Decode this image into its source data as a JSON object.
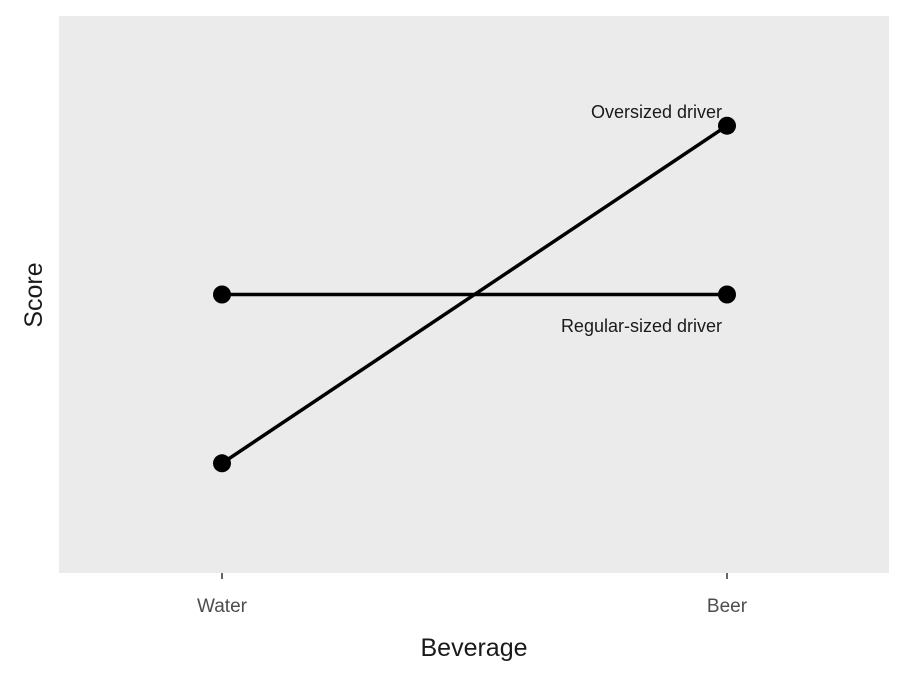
{
  "chart_data": {
    "type": "line",
    "title": "",
    "xlabel": "Beverage",
    "ylabel": "Score",
    "categories": [
      "Water",
      "Beer"
    ],
    "series": [
      {
        "name": "Oversized driver",
        "values": [
          1,
          3
        ]
      },
      {
        "name": "Regular-sized driver",
        "values": [
          2,
          2
        ]
      }
    ],
    "y_ticks_shown": false,
    "ylim": [
      0.35,
      3.65
    ],
    "grid": false,
    "legend": "none (direct labels)",
    "annotations": [
      {
        "text": "Oversized driver",
        "near": "Beer, top point",
        "position": "above-left"
      },
      {
        "text": "Regular-sized driver",
        "near": "Beer, middle point",
        "position": "below-left"
      }
    ]
  },
  "colors": {
    "panel_background": "#ebebeb",
    "line": "#000000",
    "tick_text": "#4d4d4d",
    "axis_title": "#1a1a1a"
  }
}
